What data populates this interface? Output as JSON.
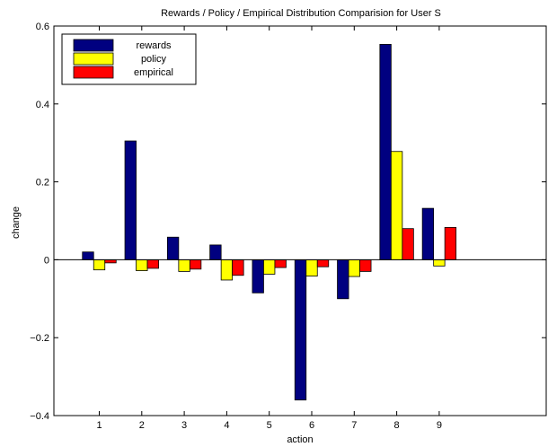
{
  "chart_data": {
    "type": "bar",
    "title": "Rewards / Policy / Empirical Distribution Comparision for User S",
    "xlabel": "action",
    "ylabel": "change",
    "categories": [
      "1",
      "2",
      "3",
      "4",
      "5",
      "6",
      "7",
      "8",
      "9"
    ],
    "ylim": [
      -0.4,
      0.6
    ],
    "yticks": [
      -0.4,
      -0.2,
      0,
      0.2,
      0.4,
      0.6
    ],
    "ytick_labels": [
      "−0.4",
      "−0.2",
      "0",
      "0.2",
      "0.4",
      "0.6"
    ],
    "grid": false,
    "legend_position": "top-left",
    "series": [
      {
        "name": "rewards",
        "color": "#000080",
        "values": [
          0.02,
          0.305,
          0.058,
          0.038,
          -0.085,
          -0.36,
          -0.1,
          0.553,
          0.132
        ]
      },
      {
        "name": "policy",
        "color": "#ffff00",
        "values": [
          -0.026,
          -0.028,
          -0.03,
          -0.052,
          -0.037,
          -0.042,
          -0.043,
          0.278,
          -0.016
        ]
      },
      {
        "name": "empirical",
        "color": "#ff0000",
        "values": [
          -0.008,
          -0.022,
          -0.024,
          -0.04,
          -0.02,
          -0.018,
          -0.03,
          0.08,
          0.083
        ]
      }
    ]
  }
}
